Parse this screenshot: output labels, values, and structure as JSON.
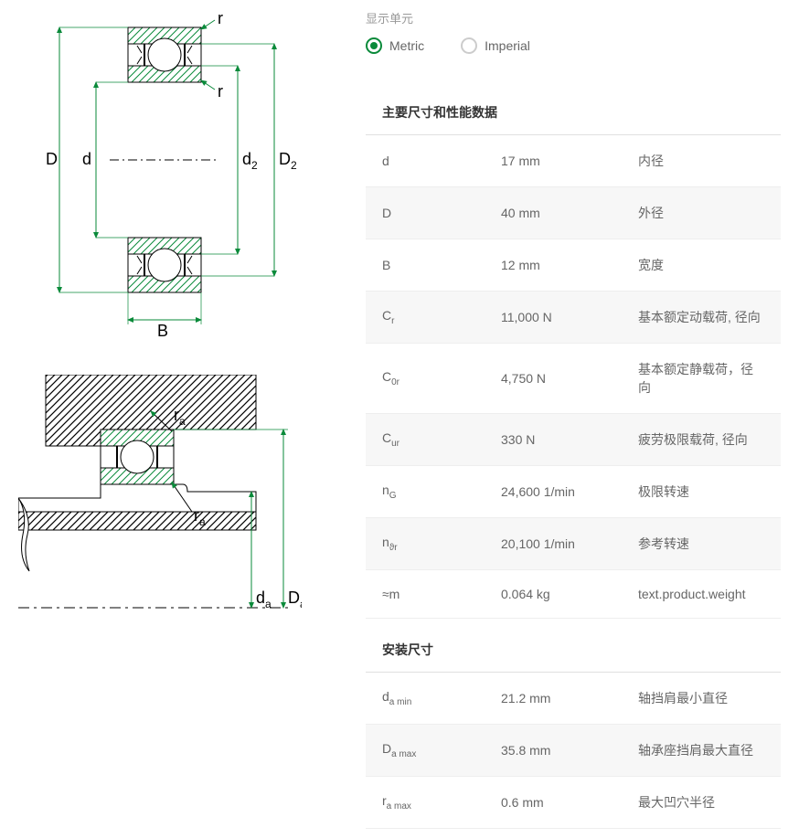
{
  "unit_section_label": "显示单元",
  "radio": {
    "metric": "Metric",
    "imperial": "Imperial",
    "selected": "metric"
  },
  "colors": {
    "accent": "#0a8a3a",
    "diagram_line": "#000",
    "diagram_hatch": "#0a8a3a",
    "arrow": "#0a8a3a",
    "text_muted": "#666",
    "row_alt_bg": "#f7f7f7",
    "border": "#e0e0e0"
  },
  "diagram1": {
    "labels": {
      "D": "D",
      "d": "d",
      "d2": "d",
      "d2sub": "2",
      "D2": "D",
      "D2sub": "2",
      "r1": "r",
      "r2": "r",
      "B": "B"
    }
  },
  "diagram2": {
    "labels": {
      "ra1": "r",
      "ra1sub": "a",
      "ra2": "r",
      "ra2sub": "a",
      "da": "d",
      "dasub": "a",
      "Da": "D",
      "Dasub": "a"
    }
  },
  "sections": [
    {
      "title": "主要尺寸和性能数据",
      "rows": [
        {
          "sym": "d",
          "sub": "",
          "val": "17 mm",
          "desc": "内径"
        },
        {
          "sym": "D",
          "sub": "",
          "val": "40 mm",
          "desc": "外径"
        },
        {
          "sym": "B",
          "sub": "",
          "val": "12 mm",
          "desc": "宽度"
        },
        {
          "sym": "C",
          "sub": "r",
          "val": "11,000 N",
          "desc": "基本额定动载荷, 径向"
        },
        {
          "sym": "C",
          "sub": "0r",
          "val": "4,750 N",
          "desc": "基本额定静载荷，径向"
        },
        {
          "sym": "C",
          "sub": "ur",
          "val": "330 N",
          "desc": "疲劳极限载荷, 径向"
        },
        {
          "sym": "n",
          "sub": "G",
          "val": "24,600 1/min",
          "desc": "极限转速"
        },
        {
          "sym": "n",
          "sub": "ϑr",
          "val": "20,100 1/min",
          "desc": "参考转速"
        },
        {
          "sym": "≈m",
          "sub": "",
          "val": "0.064 kg",
          "desc": "text.product.weight"
        }
      ]
    },
    {
      "title": "安装尺寸",
      "rows": [
        {
          "sym": "d",
          "sub": "a min",
          "val": "21.2 mm",
          "desc": "轴挡肩最小直径"
        },
        {
          "sym": "D",
          "sub": "a max",
          "val": "35.8 mm",
          "desc": "轴承座挡肩最大直径"
        },
        {
          "sym": "r",
          "sub": "a max",
          "val": "0.6 mm",
          "desc": "最大凹穴半径"
        }
      ]
    }
  ]
}
